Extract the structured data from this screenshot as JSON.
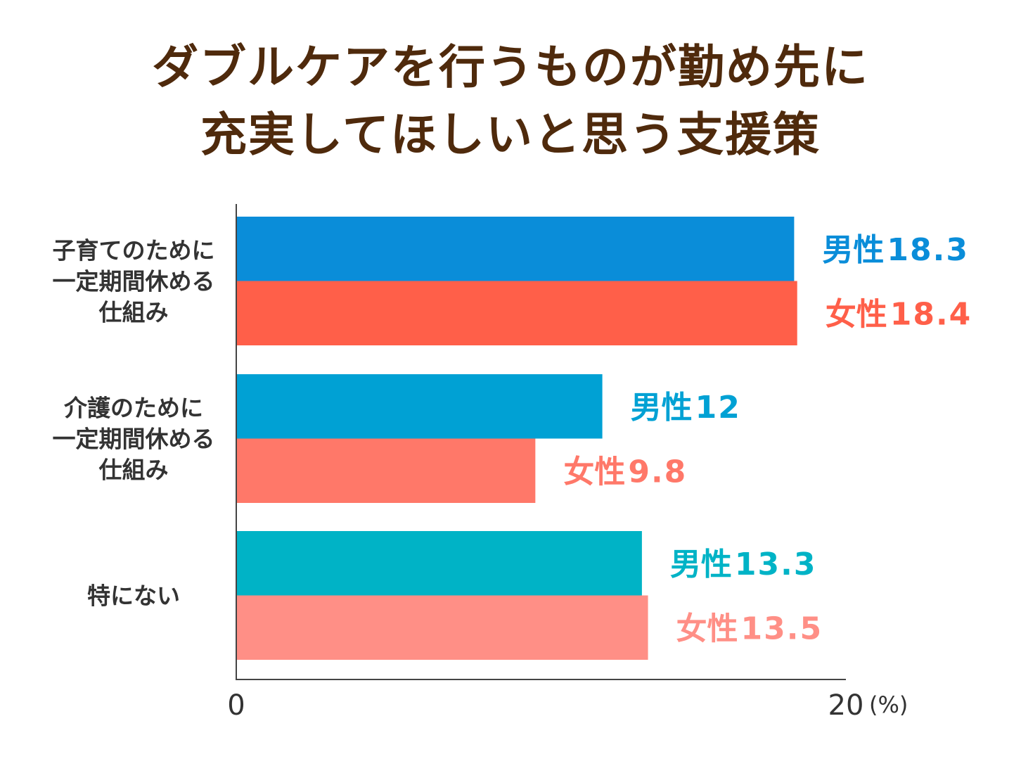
{
  "chart_data": {
    "type": "bar",
    "orientation": "horizontal",
    "title": [
      "ダブルケアを行うものが勤め先に",
      "充実してほしいと思う支援策"
    ],
    "categories": [
      [
        "子育てのために",
        "一定期間休める",
        "仕組み"
      ],
      [
        "介護のために",
        "一定期間休める",
        "仕組み"
      ],
      [
        "特にない"
      ]
    ],
    "series": [
      {
        "name": "男性",
        "values": [
          18.3,
          12,
          13.3
        ],
        "labels": [
          "18.3",
          "12",
          "13.3"
        ],
        "colors": [
          "#0a8dd9",
          "#00a1d4",
          "#00b3c6"
        ]
      },
      {
        "name": "女性",
        "values": [
          18.4,
          9.8,
          13.5
        ],
        "labels": [
          "18.4",
          "9.8",
          "13.5"
        ],
        "colors": [
          "#ff5f49",
          "#ff7869",
          "#ff8f86"
        ]
      }
    ],
    "xlim": [
      0,
      20
    ],
    "xticks": [
      "0",
      "20"
    ],
    "xunit": "(%)",
    "grid": false,
    "legend": "none (inline labels)"
  },
  "title_color": "#4f2a0c"
}
